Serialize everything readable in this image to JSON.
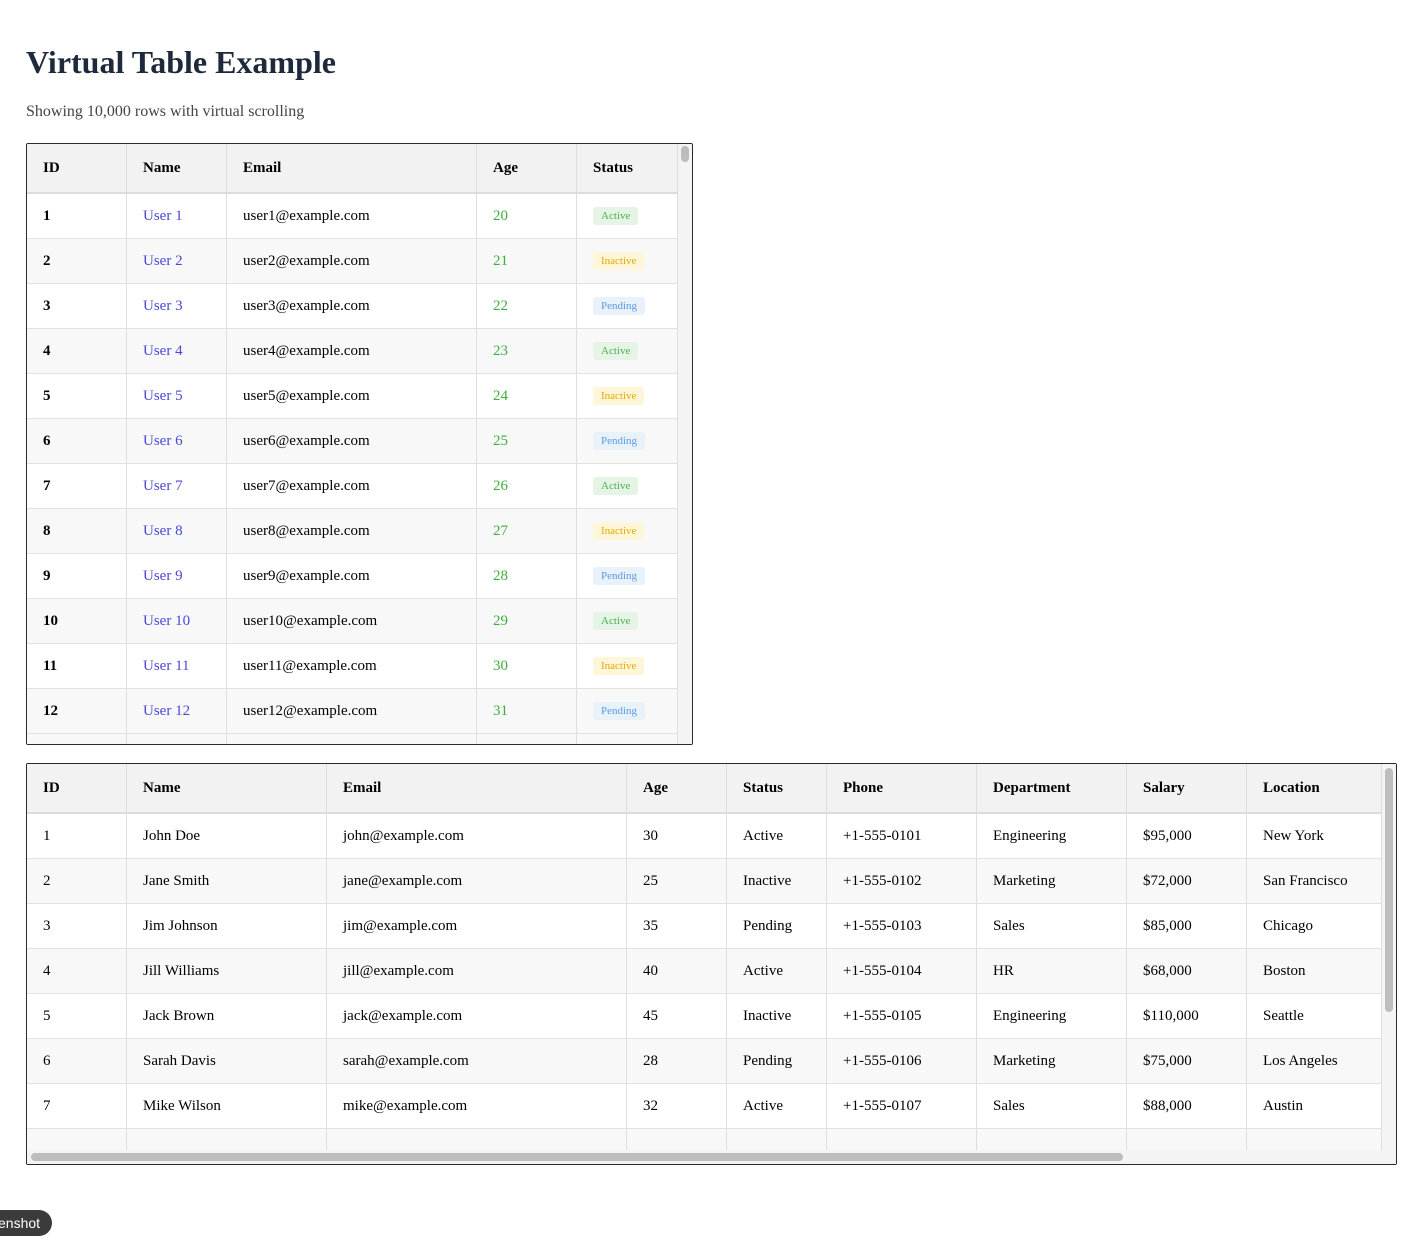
{
  "page": {
    "title": "Virtual Table Example",
    "subtitle": "Showing 10,000 rows with virtual scrolling"
  },
  "table1": {
    "columns": [
      "ID",
      "Name",
      "Email",
      "Age",
      "Status"
    ],
    "rows": [
      {
        "id": "1",
        "name": "User 1",
        "email": "user1@example.com",
        "age": "20",
        "status": "Active"
      },
      {
        "id": "2",
        "name": "User 2",
        "email": "user2@example.com",
        "age": "21",
        "status": "Inactive"
      },
      {
        "id": "3",
        "name": "User 3",
        "email": "user3@example.com",
        "age": "22",
        "status": "Pending"
      },
      {
        "id": "4",
        "name": "User 4",
        "email": "user4@example.com",
        "age": "23",
        "status": "Active"
      },
      {
        "id": "5",
        "name": "User 5",
        "email": "user5@example.com",
        "age": "24",
        "status": "Inactive"
      },
      {
        "id": "6",
        "name": "User 6",
        "email": "user6@example.com",
        "age": "25",
        "status": "Pending"
      },
      {
        "id": "7",
        "name": "User 7",
        "email": "user7@example.com",
        "age": "26",
        "status": "Active"
      },
      {
        "id": "8",
        "name": "User 8",
        "email": "user8@example.com",
        "age": "27",
        "status": "Inactive"
      },
      {
        "id": "9",
        "name": "User 9",
        "email": "user9@example.com",
        "age": "28",
        "status": "Pending"
      },
      {
        "id": "10",
        "name": "User 10",
        "email": "user10@example.com",
        "age": "29",
        "status": "Active"
      },
      {
        "id": "11",
        "name": "User 11",
        "email": "user11@example.com",
        "age": "30",
        "status": "Inactive"
      },
      {
        "id": "12",
        "name": "User 12",
        "email": "user12@example.com",
        "age": "31",
        "status": "Pending"
      }
    ]
  },
  "table2": {
    "columns": [
      "ID",
      "Name",
      "Email",
      "Age",
      "Status",
      "Phone",
      "Department",
      "Salary",
      "Location"
    ],
    "rows": [
      {
        "id": "1",
        "name": "John Doe",
        "email": "john@example.com",
        "age": "30",
        "status": "Active",
        "phone": "+1-555-0101",
        "department": "Engineering",
        "salary": "$95,000",
        "location": "New York"
      },
      {
        "id": "2",
        "name": "Jane Smith",
        "email": "jane@example.com",
        "age": "25",
        "status": "Inactive",
        "phone": "+1-555-0102",
        "department": "Marketing",
        "salary": "$72,000",
        "location": "San Francisco"
      },
      {
        "id": "3",
        "name": "Jim Johnson",
        "email": "jim@example.com",
        "age": "35",
        "status": "Pending",
        "phone": "+1-555-0103",
        "department": "Sales",
        "salary": "$85,000",
        "location": "Chicago"
      },
      {
        "id": "4",
        "name": "Jill Williams",
        "email": "jill@example.com",
        "age": "40",
        "status": "Active",
        "phone": "+1-555-0104",
        "department": "HR",
        "salary": "$68,000",
        "location": "Boston"
      },
      {
        "id": "5",
        "name": "Jack Brown",
        "email": "jack@example.com",
        "age": "45",
        "status": "Inactive",
        "phone": "+1-555-0105",
        "department": "Engineering",
        "salary": "$110,000",
        "location": "Seattle"
      },
      {
        "id": "6",
        "name": "Sarah Davis",
        "email": "sarah@example.com",
        "age": "28",
        "status": "Pending",
        "phone": "+1-555-0106",
        "department": "Marketing",
        "salary": "$75,000",
        "location": "Los Angeles"
      },
      {
        "id": "7",
        "name": "Mike Wilson",
        "email": "mike@example.com",
        "age": "32",
        "status": "Active",
        "phone": "+1-555-0107",
        "department": "Sales",
        "salary": "$88,000",
        "location": "Austin"
      }
    ]
  },
  "screenshot_button": {
    "label": "enshot"
  },
  "colors": {
    "title": "#1e2a3b",
    "name_link": "#4a47d8",
    "age": "#3fae3f",
    "active": "#4caf50",
    "inactive": "#e6a800",
    "pending": "#5a9be0"
  }
}
